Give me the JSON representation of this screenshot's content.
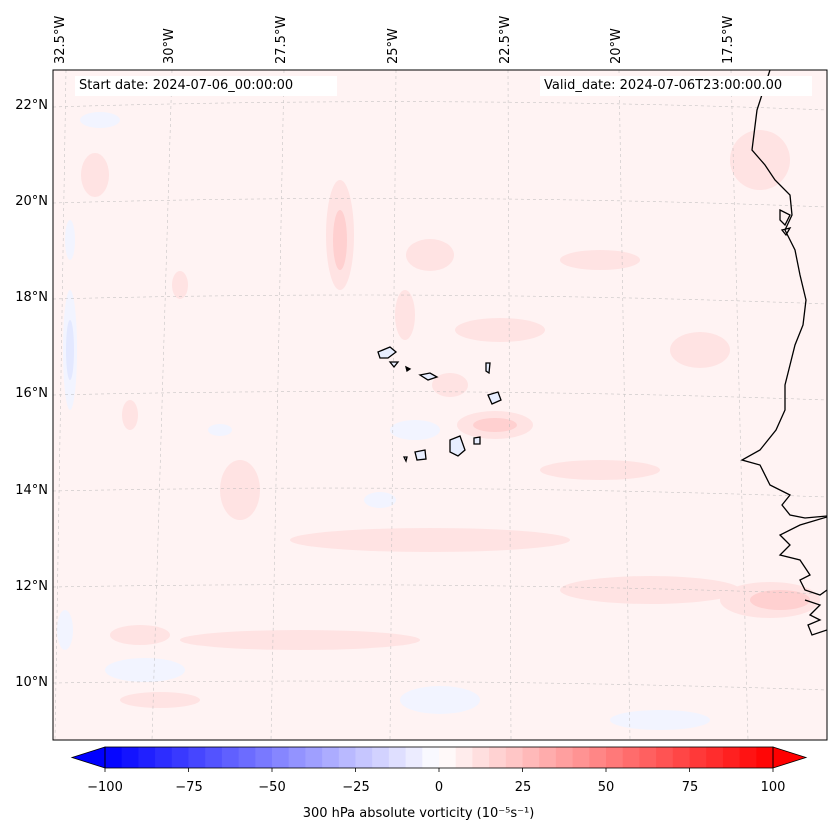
{
  "map": {
    "start_date_label": "Start date: 2024-07-06_00:00:00",
    "valid_date_label": "Valid_date: 2024-07-06T23:00:00.00",
    "longitude_labels": [
      "32.5°W",
      "30°W",
      "27.5°W",
      "25°W",
      "22.5°W",
      "20°W",
      "17.5°W"
    ],
    "latitude_labels": [
      "22°N",
      "20°N",
      "18°N",
      "16°N",
      "14°N",
      "12°N",
      "10°N"
    ],
    "region": "Cape Verde islands and West African coast",
    "colormap": "bwr"
  },
  "colorbar": {
    "label": "300 hPa absolute vorticity (10⁻⁵s⁻¹)",
    "ticks": [
      "−100",
      "−75",
      "−50",
      "−25",
      "0",
      "25",
      "50",
      "75",
      "100"
    ],
    "min": -100,
    "max": 100,
    "step": 5,
    "colors": {
      "low": "#0000ff",
      "mid": "#ffffff",
      "high": "#ff0000"
    }
  }
}
